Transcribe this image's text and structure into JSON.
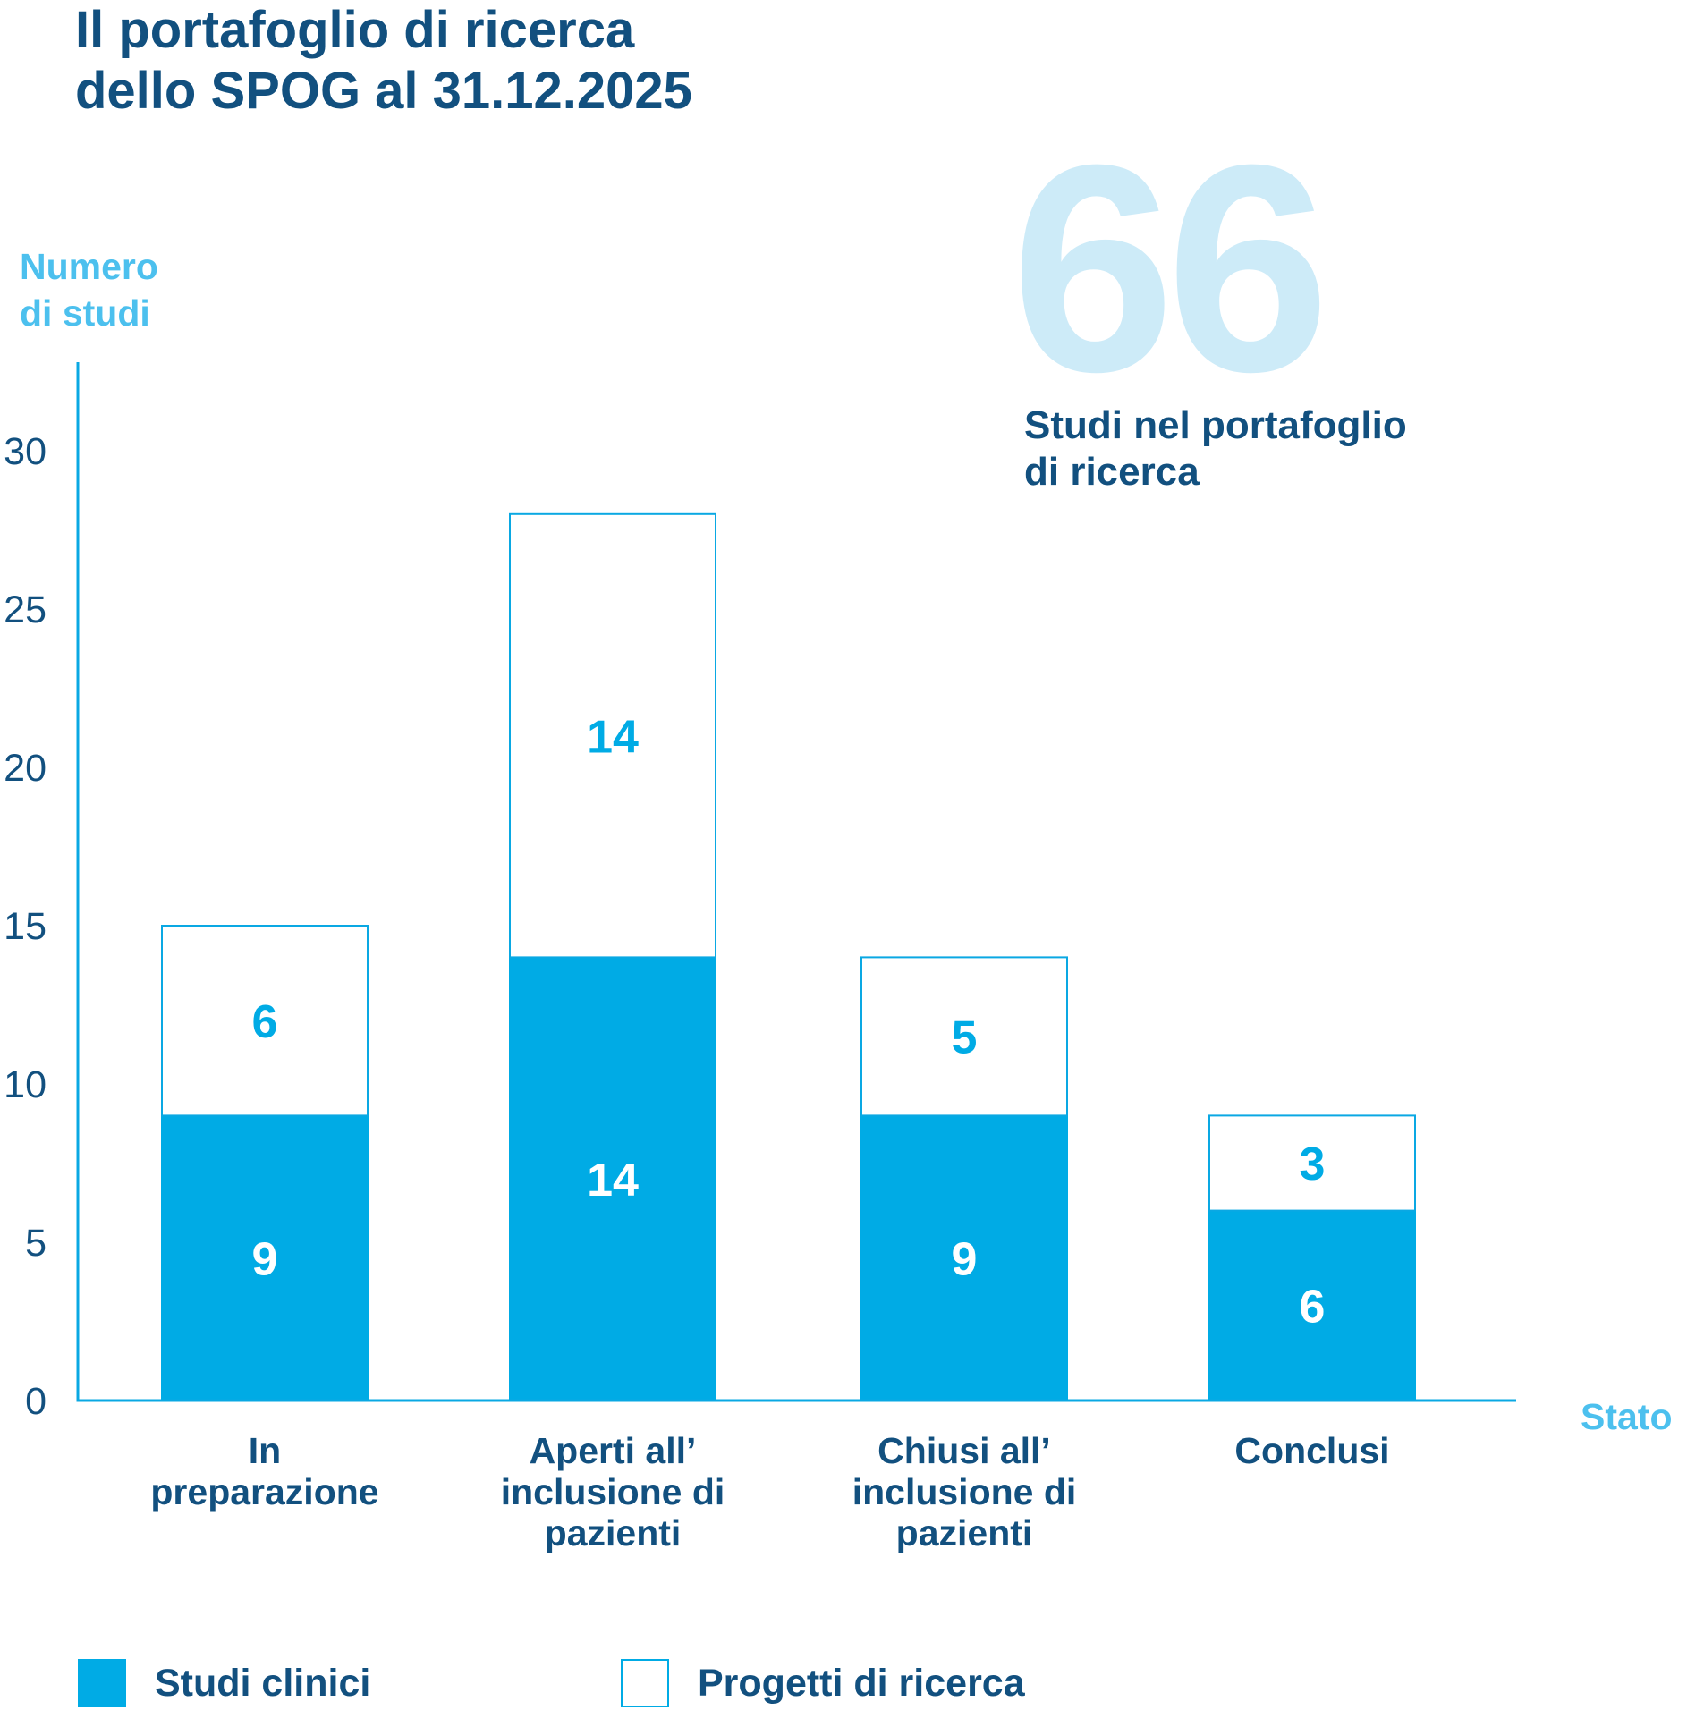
{
  "title": {
    "line1": "Il portafoglio di ricerca",
    "line2": "dello SPOG al 31.12.2025"
  },
  "highlight": {
    "number": "66",
    "caption_line1": "Studi nel portafoglio",
    "caption_line2": "di ricerca"
  },
  "colors": {
    "title": "#12507f",
    "axis": "#0aa8e3",
    "accent_light": "#4cc0ee",
    "bar_fill": "#00abe5",
    "big_number": "#cdebf8",
    "bar_label_on_white": "#00abe5",
    "bar_label_on_fill": "#ffffff"
  },
  "chart_data": {
    "type": "bar",
    "stacked": true,
    "categories": [
      [
        "In",
        "preparazione"
      ],
      [
        "Aperti all’",
        "inclusione di",
        "pazienti"
      ],
      [
        "Chiusi all’",
        "inclusione di",
        "pazienti"
      ],
      [
        "Conclusi"
      ]
    ],
    "series": [
      {
        "name": "Studi clinici",
        "values": [
          9,
          14,
          9,
          6
        ],
        "style": "filled"
      },
      {
        "name": "Progetti di ricerca",
        "values": [
          6,
          14,
          5,
          3
        ],
        "style": "outline"
      }
    ],
    "ylabel": [
      "Numero",
      "di studi"
    ],
    "xlabel": "Stato",
    "ylim": [
      0,
      33
    ],
    "yticks": [
      0,
      5,
      10,
      15,
      20,
      25,
      30
    ],
    "legend_position": "bottom"
  }
}
